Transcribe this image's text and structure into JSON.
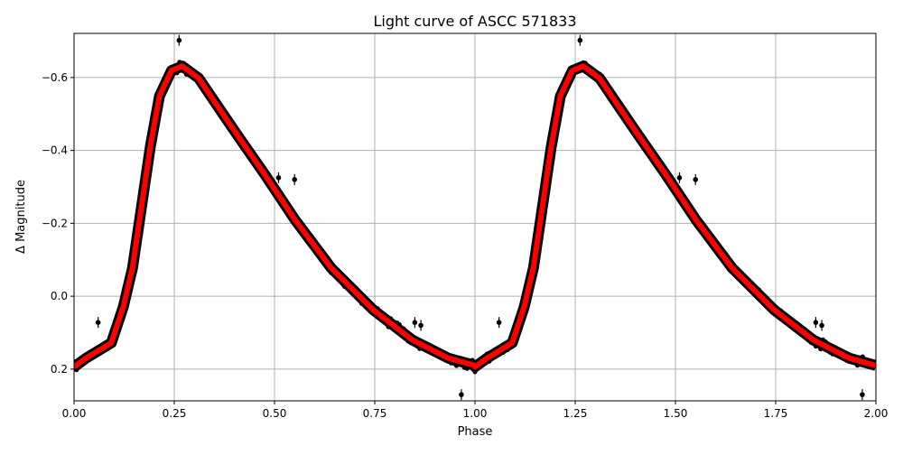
{
  "chart_data": {
    "type": "scatter",
    "title": "Light curve of ASCC 571833",
    "xlabel": "Phase",
    "ylabel": "Δ Magnitude",
    "xlim": [
      0,
      2
    ],
    "ylim": [
      0.287,
      -0.721
    ],
    "y_inverted": true,
    "grid": true,
    "xticks": [
      0,
      0.25,
      0.5,
      0.75,
      1.0,
      1.25,
      1.5,
      1.75,
      2.0
    ],
    "xtick_labels": [
      "0.00",
      "0.25",
      "0.50",
      "0.75",
      "1.00",
      "1.25",
      "1.50",
      "1.75",
      "2.00"
    ],
    "yticks": [
      -0.6,
      -0.4,
      -0.2,
      0.0,
      0.2
    ],
    "ytick_labels": [
      "−0.6",
      "−0.4",
      "−0.2",
      "0.0",
      "0.2"
    ],
    "colors": {
      "observations": "#000000",
      "model": "#ff0000",
      "grid": "#b0b0b0"
    },
    "model": {
      "phase": [
        0.0,
        0.03,
        0.093,
        0.123,
        0.146,
        0.168,
        0.19,
        0.213,
        0.243,
        0.27,
        0.311,
        0.341,
        0.408,
        0.476,
        0.551,
        0.641,
        0.746,
        0.844,
        0.934,
        1.0
      ],
      "mag": [
        0.194,
        0.17,
        0.128,
        0.029,
        -0.078,
        -0.243,
        -0.409,
        -0.549,
        -0.619,
        -0.631,
        -0.598,
        -0.549,
        -0.441,
        -0.334,
        -0.21,
        -0.078,
        0.037,
        0.12,
        0.17,
        0.19
      ],
      "period_repeats": 2
    },
    "outliers": [
      {
        "phase": 0.06,
        "mag": 0.072
      },
      {
        "phase": 0.262,
        "mag": -0.702
      },
      {
        "phase": 0.51,
        "mag": -0.325
      },
      {
        "phase": 0.55,
        "mag": -0.32
      },
      {
        "phase": 0.85,
        "mag": 0.072
      },
      {
        "phase": 0.865,
        "mag": 0.08
      },
      {
        "phase": 0.966,
        "mag": 0.27
      },
      {
        "phase": 1.06,
        "mag": 0.072
      },
      {
        "phase": 1.262,
        "mag": -0.702
      },
      {
        "phase": 1.51,
        "mag": -0.325
      },
      {
        "phase": 1.55,
        "mag": -0.32
      },
      {
        "phase": 1.85,
        "mag": 0.072
      },
      {
        "phase": 1.865,
        "mag": 0.08
      },
      {
        "phase": 1.966,
        "mag": 0.27
      }
    ]
  }
}
